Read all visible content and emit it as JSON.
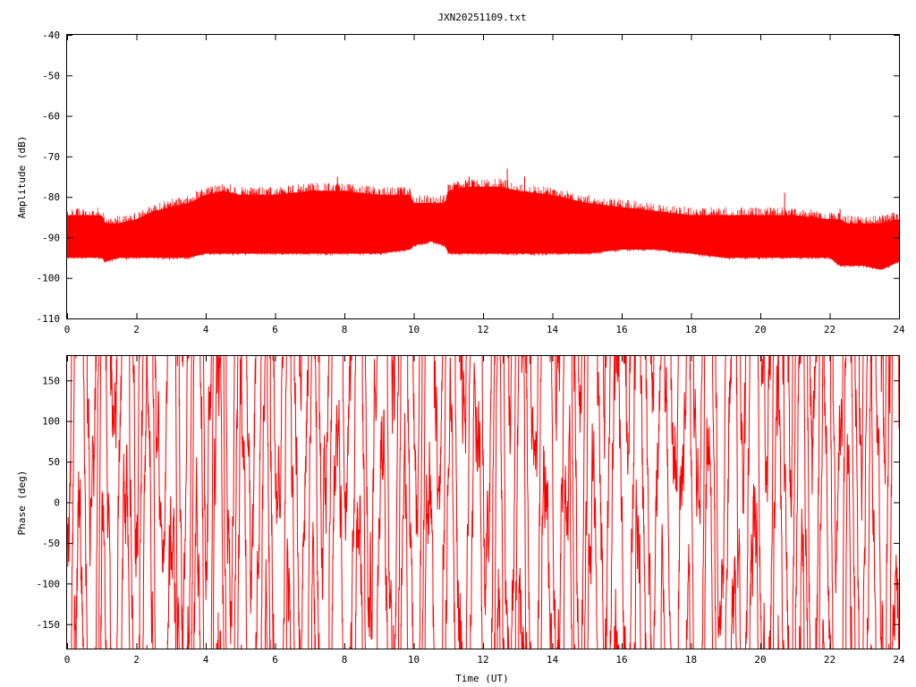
{
  "chart_data": [
    {
      "type": "line",
      "title": "JXN20251109.txt",
      "xlabel": "",
      "ylabel": "Amplitude (dB)",
      "xlim": [
        0,
        24
      ],
      "ylim": [
        -110,
        -40
      ],
      "x_ticks": [
        "0",
        "2",
        "4",
        "6",
        "8",
        "10",
        "12",
        "14",
        "16",
        "18",
        "20",
        "22",
        "24"
      ],
      "y_ticks": [
        "-40",
        "-50",
        "-60",
        "-70",
        "-80",
        "-90",
        "-100",
        "-110"
      ],
      "color": "#ff0000",
      "envelope": {
        "x": [
          0,
          0.5,
          1.0,
          1.1,
          1.5,
          2.0,
          2.5,
          3.0,
          3.5,
          4.0,
          4.5,
          5.0,
          6.0,
          7.0,
          8.0,
          9.0,
          9.9,
          10.0,
          10.5,
          10.9,
          11.0,
          11.5,
          12.0,
          12.5,
          13.0,
          14.0,
          15.0,
          16.0,
          17.0,
          18.0,
          19.0,
          20.0,
          21.0,
          22.0,
          22.3,
          22.5,
          23.0,
          23.5,
          24.0
        ],
        "upper": [
          -86,
          -86,
          -86,
          -88,
          -88,
          -87,
          -85,
          -84,
          -83,
          -81,
          -80,
          -81,
          -81,
          -80,
          -80,
          -81,
          -81,
          -83,
          -83,
          -83,
          -80,
          -79,
          -79,
          -79,
          -80,
          -81,
          -83,
          -84,
          -85,
          -86,
          -86,
          -86,
          -86,
          -87,
          -87,
          -88,
          -88,
          -88,
          -87
        ],
        "lower": [
          -94,
          -94,
          -94,
          -95,
          -94,
          -94,
          -94,
          -94,
          -94,
          -93,
          -93,
          -93,
          -93,
          -93,
          -93,
          -93,
          -92,
          -91,
          -90,
          -91,
          -93,
          -93,
          -93,
          -93,
          -93,
          -93,
          -93,
          -92,
          -92,
          -93,
          -94,
          -94,
          -94,
          -94,
          -96,
          -96,
          -96,
          -97,
          -95
        ]
      },
      "spikes": [
        {
          "x": 2.5,
          "y": -83
        },
        {
          "x": 4.2,
          "y": -79
        },
        {
          "x": 5.5,
          "y": -79
        },
        {
          "x": 7.1,
          "y": -77
        },
        {
          "x": 7.8,
          "y": -75
        },
        {
          "x": 9.5,
          "y": -79
        },
        {
          "x": 11.0,
          "y": -77
        },
        {
          "x": 11.6,
          "y": -75
        },
        {
          "x": 12.7,
          "y": -73
        },
        {
          "x": 13.2,
          "y": -75
        },
        {
          "x": 20.7,
          "y": -79
        },
        {
          "x": 22.3,
          "y": -83
        }
      ]
    },
    {
      "type": "line",
      "title": "",
      "xlabel": "Time (UT)",
      "ylabel": "Phase (deg)",
      "xlim": [
        0,
        24
      ],
      "ylim": [
        -180,
        180
      ],
      "x_ticks": [
        "0",
        "2",
        "4",
        "6",
        "8",
        "10",
        "12",
        "14",
        "16",
        "18",
        "20",
        "22",
        "24"
      ],
      "y_ticks": [
        "150",
        "100",
        "50",
        "0",
        "-50",
        "-100",
        "-150"
      ],
      "color": "#ff0000",
      "description_values": "phase wraps rapidly between -180 and 180 deg throughout the day"
    }
  ]
}
